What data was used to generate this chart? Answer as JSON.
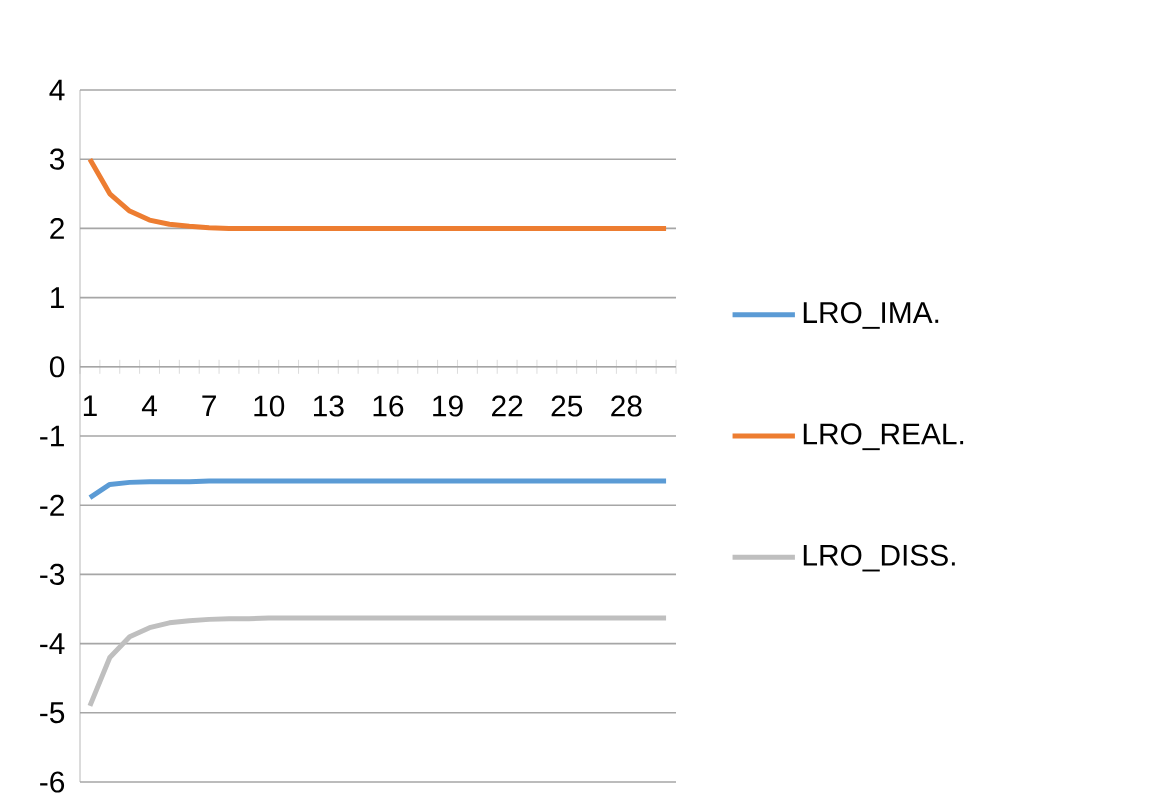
{
  "chart_data": {
    "type": "line",
    "categories": [
      "1",
      null,
      null,
      "4",
      null,
      null,
      "7",
      null,
      null,
      "10",
      null,
      null,
      "13",
      null,
      null,
      "16",
      null,
      null,
      "19",
      null,
      null,
      "22",
      null,
      null,
      "25",
      null,
      null,
      "28",
      null,
      null
    ],
    "series": [
      {
        "name": "LRO_IMA.",
        "color": "#5b9bd5",
        "values": [
          -1.89,
          -1.7,
          -1.67,
          -1.66,
          -1.66,
          -1.66,
          -1.65,
          -1.65,
          -1.65,
          -1.65,
          -1.65,
          -1.65,
          -1.65,
          -1.65,
          -1.65,
          -1.65,
          -1.65,
          -1.65,
          -1.65,
          -1.65,
          -1.65,
          -1.65,
          -1.65,
          -1.65,
          -1.65,
          -1.65,
          -1.65,
          -1.65,
          -1.65,
          -1.65
        ]
      },
      {
        "name": "LRO_REAL.",
        "color": "#ed7d31",
        "values": [
          3.0,
          2.5,
          2.25,
          2.12,
          2.06,
          2.03,
          2.01,
          2.0,
          2.0,
          2.0,
          2.0,
          2.0,
          2.0,
          2.0,
          2.0,
          2.0,
          2.0,
          2.0,
          2.0,
          2.0,
          2.0,
          2.0,
          2.0,
          2.0,
          2.0,
          2.0,
          2.0,
          2.0,
          2.0,
          2.0
        ]
      },
      {
        "name": "LRO_DISS.",
        "color": "#bfbfbf",
        "values": [
          -4.9,
          -4.2,
          -3.9,
          -3.77,
          -3.7,
          -3.67,
          -3.65,
          -3.64,
          -3.64,
          -3.63,
          -3.63,
          -3.63,
          -3.63,
          -3.63,
          -3.63,
          -3.63,
          -3.63,
          -3.63,
          -3.63,
          -3.63,
          -3.63,
          -3.63,
          -3.63,
          -3.63,
          -3.63,
          -3.63,
          -3.63,
          -3.63,
          -3.63,
          -3.63
        ]
      }
    ],
    "ylim": [
      -6,
      4
    ],
    "yticks": [
      -6,
      -5,
      -4,
      -3,
      -2,
      -1,
      0,
      1,
      2,
      3,
      4
    ],
    "grid": "y",
    "legend": "right",
    "marker": "none",
    "line_style": "solid"
  }
}
